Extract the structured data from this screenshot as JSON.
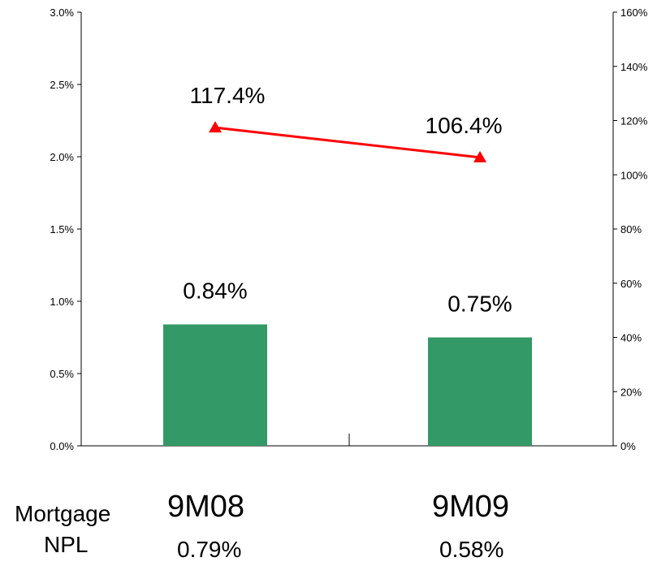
{
  "colors": {
    "bar": "#339966",
    "line": "#ff0000",
    "axis": "#000000"
  },
  "chart_data": {
    "type": "bar+line",
    "categories": [
      "9M08",
      "9M09"
    ],
    "series": [
      {
        "axis": "left",
        "type": "bar",
        "values": [
          0.0084,
          0.0075
        ],
        "data_labels": [
          "0.84%",
          "0.75%"
        ]
      },
      {
        "axis": "right",
        "type": "line",
        "marker": "triangle",
        "values": [
          1.174,
          1.064
        ],
        "data_labels": [
          "117.4%",
          "106.4%"
        ]
      }
    ],
    "y_left": {
      "lim": [
        0,
        0.03
      ],
      "ticks": [
        0,
        0.005,
        0.01,
        0.015,
        0.02,
        0.025,
        0.03
      ],
      "tick_labels": [
        "0.0%",
        "0.5%",
        "1.0%",
        "1.5%",
        "2.0%",
        "2.5%",
        "3.0%"
      ]
    },
    "y_right": {
      "lim": [
        0,
        1.6
      ],
      "ticks": [
        0,
        0.2,
        0.4,
        0.6,
        0.8,
        1.0,
        1.2,
        1.4,
        1.6
      ],
      "tick_labels": [
        "0%",
        "20%",
        "40%",
        "60%",
        "80%",
        "100%",
        "120%",
        "140%",
        "160%"
      ]
    },
    "grid": false,
    "legend": "none"
  },
  "footer": {
    "row_label_line1": "Mortgage",
    "row_label_line2": "NPL",
    "columns": [
      {
        "period": "9M08",
        "npl": "0.79%"
      },
      {
        "period": "9M09",
        "npl": "0.58%"
      }
    ]
  }
}
